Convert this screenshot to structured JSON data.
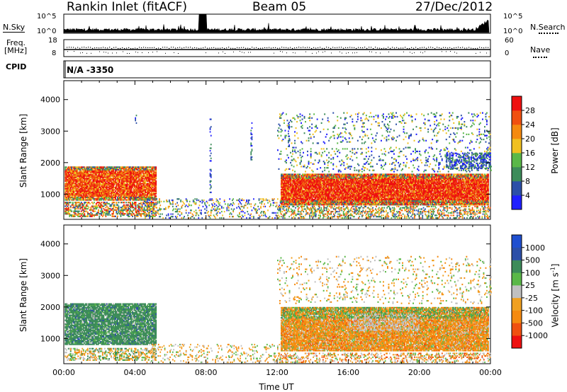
{
  "header": {
    "station": "Rankin Inlet (fitACF)",
    "beam": "Beam 05",
    "date": "27/Dec/2012"
  },
  "noise_panel": {
    "left_label": "N.Sky",
    "right_label": "N.Search",
    "left_ticks": [
      "10^5",
      "10^0"
    ],
    "right_ticks": [
      "10^5",
      "10^0"
    ]
  },
  "freq_panel": {
    "left_label_line1": "Freq.",
    "left_label_line2": "[MHz]",
    "right_label": "Nave",
    "left_ticks": [
      "18",
      "8"
    ],
    "right_ticks": [
      "60",
      "0"
    ]
  },
  "cpid": {
    "label": "CPID",
    "value": "N/A -3350"
  },
  "colors": {
    "power": [
      "#1f1fff",
      "#2c4fa8",
      "#3d8c5a",
      "#5ab848",
      "#f0c020",
      "#f58a10",
      "#f05010",
      "#ee1010"
    ],
    "velocity": [
      "#ee1010",
      "#f05010",
      "#f58a10",
      "#f0a020",
      "#c0c0c0",
      "#5ab848",
      "#3d8c5a",
      "#2c4fa8",
      "#1f4fd0"
    ]
  },
  "chart_data": [
    {
      "type": "heatmap",
      "name": "power",
      "ylabel": "Slant Range [km]",
      "ylim": [
        200,
        4600
      ],
      "y_ticks": [
        1000,
        2000,
        3000,
        4000
      ],
      "xlim": [
        0,
        24
      ],
      "colorbar_label": "Power [dB]",
      "colorbar_ticks": [
        "4",
        "8",
        "12",
        "16",
        "20",
        "24",
        "28"
      ],
      "colorbar_range": [
        0,
        32
      ],
      "regions": [
        {
          "t0": 0.0,
          "t1": 5.2,
          "r0": 800,
          "r1": 1850,
          "level": "high"
        },
        {
          "t0": 0.0,
          "t1": 5.2,
          "r0": 300,
          "r1": 700,
          "level": "mixed"
        },
        {
          "t0": 12.2,
          "t1": 23.9,
          "r0": 700,
          "r1": 1650,
          "level": "high"
        },
        {
          "t0": 12.0,
          "t1": 24.0,
          "r0": 1800,
          "r1": 3600,
          "level": "low"
        },
        {
          "t0": 5.0,
          "t1": 12.0,
          "r0": 200,
          "r1": 900,
          "level": "low"
        }
      ]
    },
    {
      "type": "heatmap",
      "name": "velocity",
      "ylabel": "Slant Range [km]",
      "ylim": [
        200,
        4600
      ],
      "y_ticks": [
        1000,
        2000,
        3000,
        4000
      ],
      "xlim": [
        0,
        24
      ],
      "xlabel": "Time UT",
      "x_ticks": [
        "00:00",
        "04:00",
        "08:00",
        "12:00",
        "16:00",
        "20:00",
        "00:00"
      ],
      "colorbar_label": "Velocity [m s^-1]",
      "colorbar_ticks": [
        "-1000",
        "-500",
        "-100",
        "-25",
        "25",
        "100",
        "500",
        "1000"
      ],
      "regions": [
        {
          "t0": 0.0,
          "t1": 5.2,
          "r0": 800,
          "r1": 2100,
          "level": "positive"
        },
        {
          "t0": 12.2,
          "t1": 23.9,
          "r0": 600,
          "r1": 2000,
          "level": "negative"
        }
      ]
    }
  ]
}
